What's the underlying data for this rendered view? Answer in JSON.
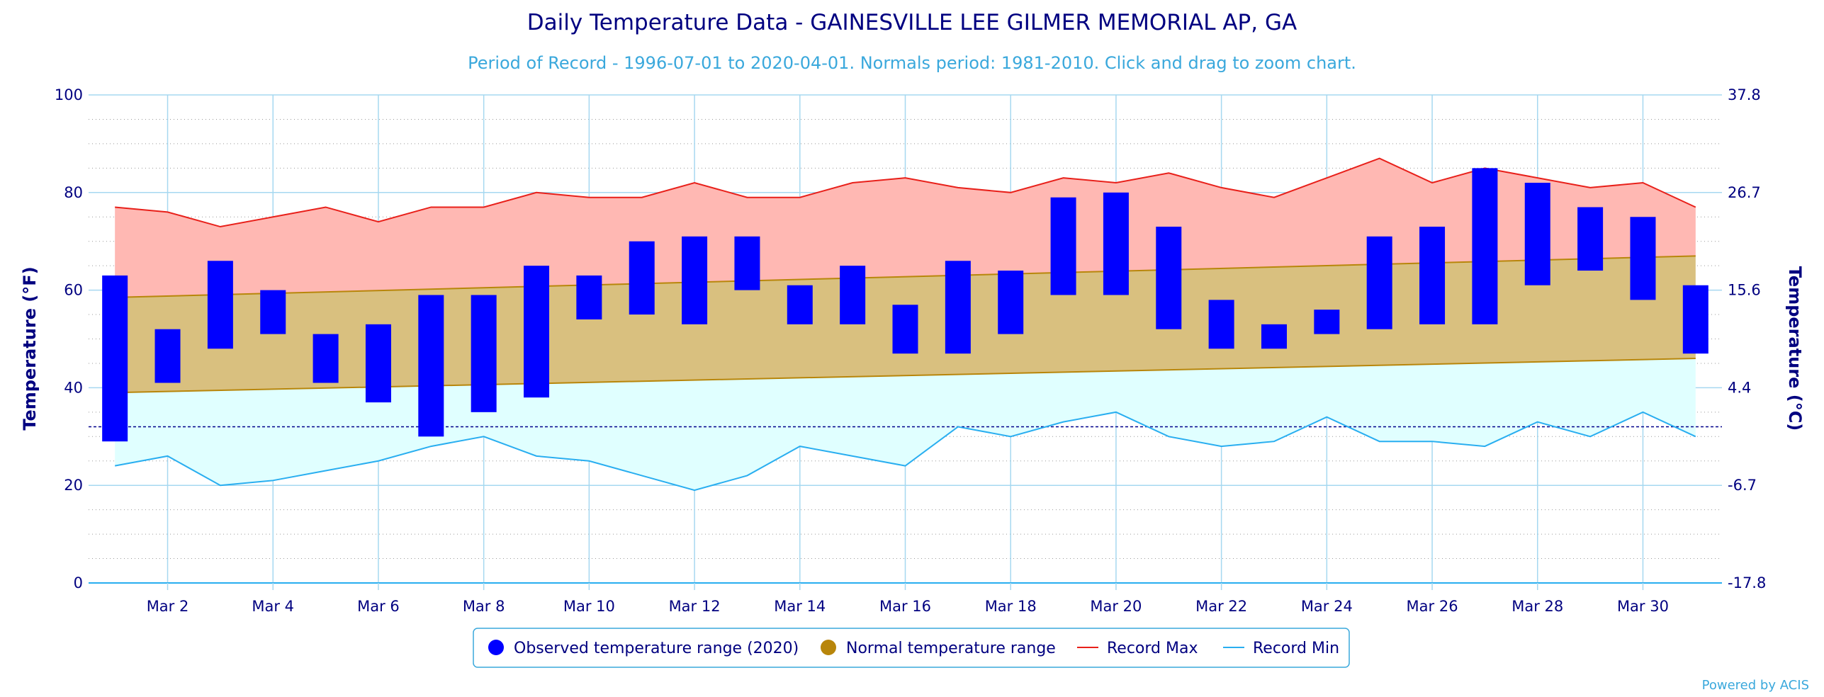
{
  "chart_data": {
    "type": "bar",
    "title": "Daily Temperature Data - GAINESVILLE LEE GILMER MEMORIAL AP, GA",
    "subtitle": "Period of Record - 1996-07-01 to 2020-04-01. Normals period: 1981-2010. Click and drag to zoom chart.",
    "ylabel": "Temperature (°F)",
    "ylabel_right": "Temperature (°C)",
    "ylim": [
      0,
      100
    ],
    "yticks": [
      0,
      20,
      40,
      60,
      80,
      100
    ],
    "yticks_right": [
      "-17.8",
      "-6.7",
      "4.4",
      "15.6",
      "26.7",
      "37.8"
    ],
    "freezing_line": 32,
    "grid": true,
    "legend_position": "bottom-center",
    "days": [
      1,
      2,
      3,
      4,
      5,
      6,
      7,
      8,
      9,
      10,
      11,
      12,
      13,
      14,
      15,
      16,
      17,
      18,
      19,
      20,
      21,
      22,
      23,
      24,
      25,
      26,
      27,
      28,
      29,
      30,
      31
    ],
    "x_tick_labels": [
      {
        "day": 2,
        "label": "Mar 2"
      },
      {
        "day": 4,
        "label": "Mar 4"
      },
      {
        "day": 6,
        "label": "Mar 6"
      },
      {
        "day": 8,
        "label": "Mar 8"
      },
      {
        "day": 10,
        "label": "Mar 10"
      },
      {
        "day": 12,
        "label": "Mar 12"
      },
      {
        "day": 14,
        "label": "Mar 14"
      },
      {
        "day": 16,
        "label": "Mar 16"
      },
      {
        "day": 18,
        "label": "Mar 18"
      },
      {
        "day": 20,
        "label": "Mar 20"
      },
      {
        "day": 22,
        "label": "Mar 22"
      },
      {
        "day": 24,
        "label": "Mar 24"
      },
      {
        "day": 26,
        "label": "Mar 26"
      },
      {
        "day": 28,
        "label": "Mar 28"
      },
      {
        "day": 30,
        "label": "Mar 30"
      }
    ],
    "series": [
      {
        "name": "Observed temperature range (2020)",
        "color": "#0000ff",
        "low": [
          29,
          41,
          48,
          51,
          41,
          37,
          30,
          35,
          38,
          54,
          55,
          53,
          60,
          53,
          53,
          47,
          47,
          51,
          59,
          59,
          52,
          48,
          48,
          51,
          52,
          53,
          53,
          61,
          64,
          58,
          47
        ],
        "high": [
          63,
          52,
          66,
          60,
          51,
          53,
          59,
          59,
          65,
          63,
          70,
          71,
          71,
          61,
          65,
          57,
          66,
          64,
          79,
          80,
          73,
          58,
          53,
          56,
          71,
          73,
          85,
          82,
          77,
          75,
          61
        ]
      },
      {
        "name": "Normal temperature range",
        "color": "#b8860b",
        "fill": "#d9c07f",
        "low_start": 39,
        "low_end": 46,
        "high_start": 58.5,
        "high_end": 67
      },
      {
        "name": "Record Max",
        "color": "#e8201a",
        "fill": "#ffb8b3",
        "values": [
          77,
          76,
          73,
          75,
          77,
          74,
          77,
          77,
          80,
          79,
          79,
          82,
          79,
          79,
          82,
          83,
          81,
          80,
          83,
          82,
          84,
          81,
          79,
          83,
          87,
          82,
          85,
          83,
          81,
          82,
          77
        ]
      },
      {
        "name": "Record Min",
        "color": "#29aef0",
        "fill": "#e0ffff",
        "values": [
          24,
          26,
          20,
          21,
          23,
          25,
          28,
          30,
          26,
          25,
          22,
          19,
          22,
          28,
          26,
          24,
          32,
          30,
          33,
          35,
          30,
          28,
          29,
          34,
          29,
          29,
          28,
          33,
          30,
          35,
          30
        ]
      }
    ],
    "credit": "Powered by ACIS"
  }
}
